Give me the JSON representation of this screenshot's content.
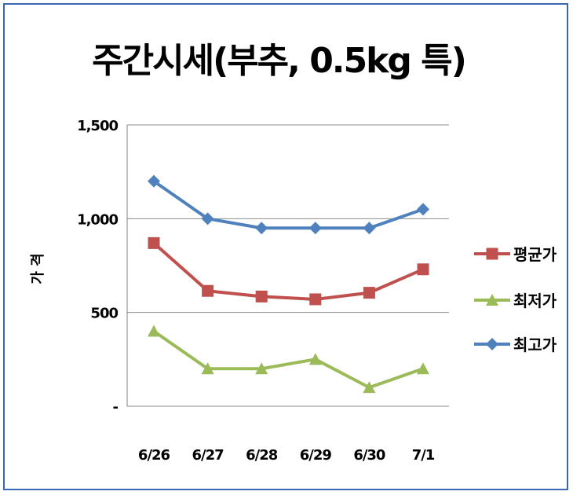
{
  "chart_data": {
    "type": "line",
    "title": "주간시세(부추, 0.5kg 특)",
    "ylabel": "가 격",
    "xlabel": "",
    "categories": [
      "6/26",
      "6/27",
      "6/28",
      "6/29",
      "6/30",
      "7/1"
    ],
    "ylim": [
      0,
      1500
    ],
    "y_ticks": [
      {
        "value": 0,
        "label": "-"
      },
      {
        "value": 500,
        "label": "500"
      },
      {
        "value": 1000,
        "label": "1,000"
      },
      {
        "value": 1500,
        "label": "1,500"
      }
    ],
    "grid": true,
    "legend_position": "right",
    "series": [
      {
        "name": "평균가",
        "color": "#c0504d",
        "marker": "square",
        "values": [
          870,
          615,
          585,
          570,
          605,
          730
        ]
      },
      {
        "name": "최저가",
        "color": "#9bbb59",
        "marker": "triangle",
        "values": [
          400,
          200,
          200,
          250,
          100,
          200
        ]
      },
      {
        "name": "최고가",
        "color": "#4f81bd",
        "marker": "diamond",
        "values": [
          1200,
          1000,
          950,
          950,
          950,
          1050
        ]
      }
    ]
  }
}
